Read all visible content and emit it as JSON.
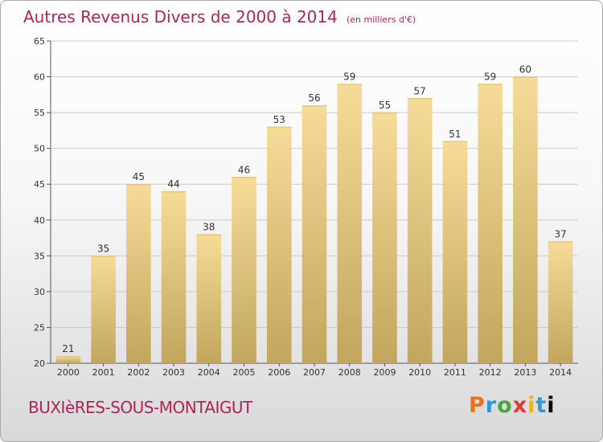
{
  "header": {
    "title": "Autres Revenus Divers de 2000 à 2014",
    "unit": "(en milliers d'€)"
  },
  "footer": {
    "commune": "BUXIèRES-SOUS-MONTAIGUT",
    "brand_letters": [
      "P",
      "r",
      "o",
      "x",
      "i",
      "t",
      "i"
    ]
  },
  "chart_data": {
    "type": "bar",
    "categories": [
      "2000",
      "2001",
      "2002",
      "2003",
      "2004",
      "2005",
      "2006",
      "2007",
      "2008",
      "2009",
      "2010",
      "2011",
      "2012",
      "2013",
      "2014"
    ],
    "values": [
      21,
      35,
      45,
      44,
      38,
      46,
      53,
      56,
      59,
      55,
      57,
      51,
      59,
      60,
      37
    ],
    "title": "Autres Revenus Divers de 2000 à 2014",
    "ylim": [
      20,
      65
    ],
    "yticks": [
      20,
      25,
      30,
      35,
      40,
      45,
      50,
      55,
      60,
      65
    ],
    "grid": true,
    "colors": {
      "bar_top": "#f6dc98",
      "bar_bottom": "#c2a65e",
      "grid": "#cccccc",
      "text": "#333333"
    }
  }
}
